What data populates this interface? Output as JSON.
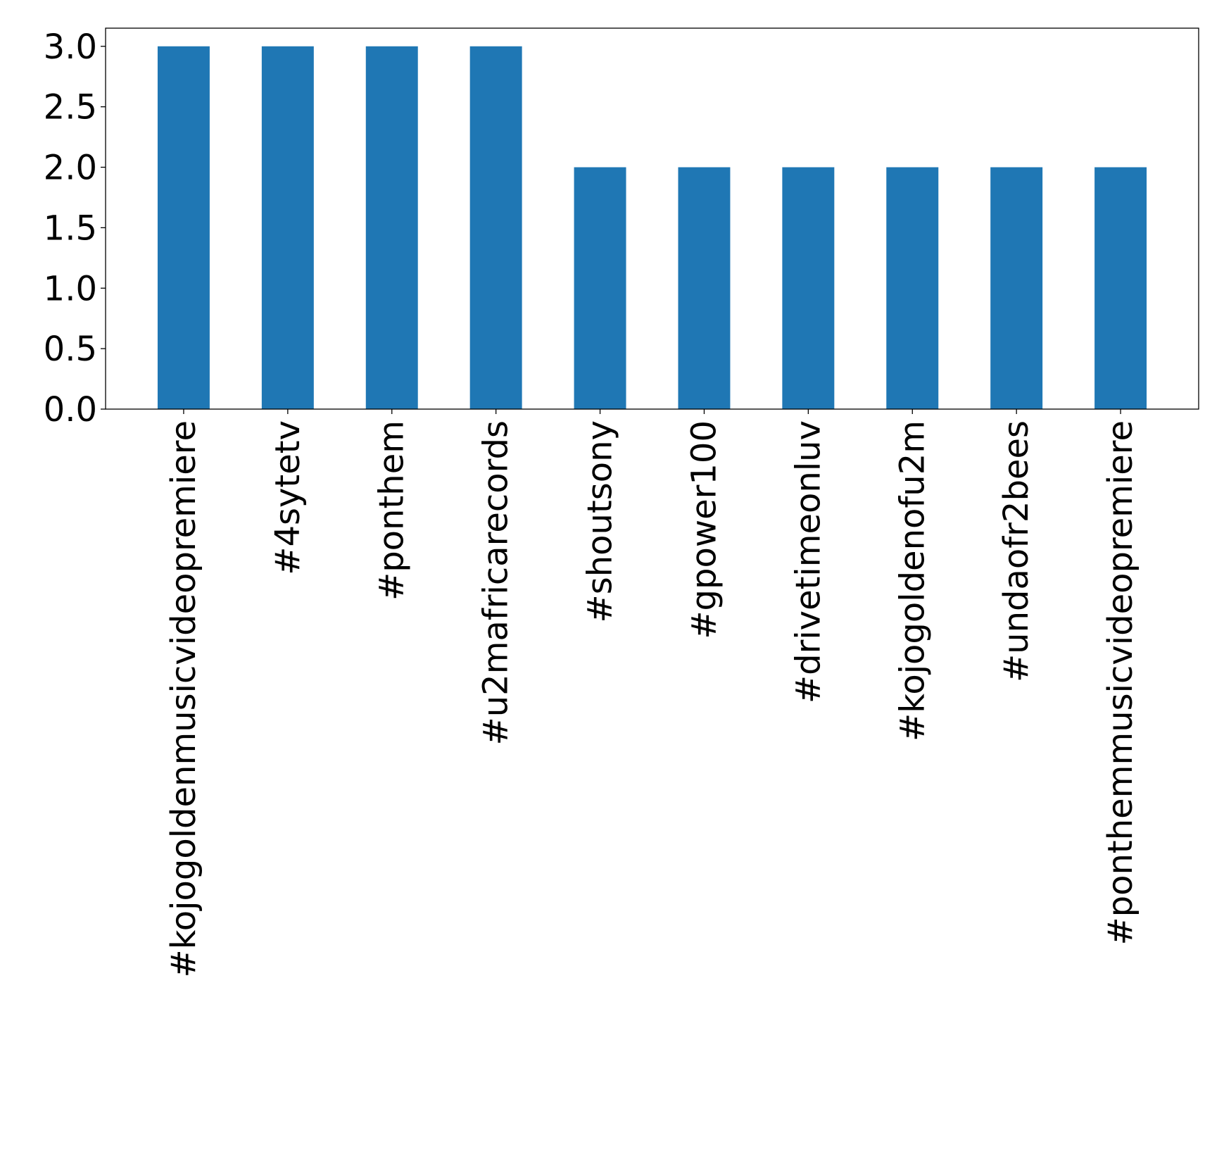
{
  "chart_data": {
    "type": "bar",
    "title": "",
    "xlabel": "",
    "ylabel": "",
    "categories": [
      "#kojogoldenmusicvideopremiere",
      "#4sytetv",
      "#ponthem",
      "#u2mafricarecords",
      "#shoutsony",
      "#gpower100",
      "#drivetimeonluv",
      "#kojogoldenofu2m",
      "#undaofr2bees",
      "#ponthemmusicvideopremiere"
    ],
    "values": [
      3,
      3,
      3,
      3,
      2,
      2,
      2,
      2,
      2,
      2
    ],
    "ylim": [
      0,
      3.15
    ],
    "yticks": [
      "0.0",
      "0.5",
      "1.0",
      "1.5",
      "2.0",
      "2.5",
      "3.0"
    ],
    "ytick_values": [
      0,
      0.5,
      1.0,
      1.5,
      2.0,
      2.5,
      3.0
    ],
    "grid": false,
    "legend": "none",
    "bar_color": "#1f77b4"
  }
}
